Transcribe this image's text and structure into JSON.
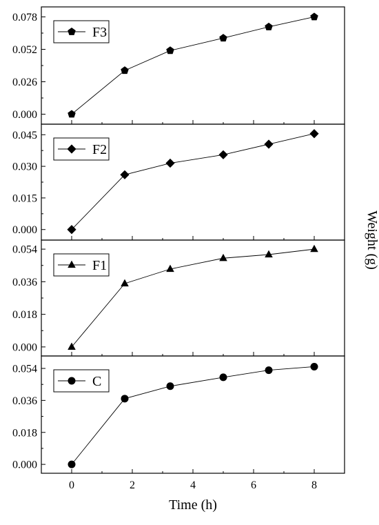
{
  "chart_data": {
    "type": "line",
    "layout": "stacked-panels-shared-x",
    "xlabel": "Time (h)",
    "ylabel": "Weight (g)",
    "xlim": [
      -1,
      9
    ],
    "xticks": [
      0,
      2,
      4,
      6,
      8
    ],
    "grid": false,
    "legend_position": "top-left",
    "panels": [
      {
        "series": [
          {
            "name": "F3",
            "marker": "pentagon",
            "x": [
              0,
              1.75,
              3.25,
              5.0,
              6.5,
              8.0
            ],
            "y": [
              0.0,
              0.035,
              0.051,
              0.061,
              0.07,
              0.078
            ]
          }
        ],
        "ylim": [
          -0.008,
          0.086
        ],
        "yticks": [
          "0.000",
          "0.026",
          "0.052",
          "0.078"
        ]
      },
      {
        "series": [
          {
            "name": "F2",
            "marker": "diamond",
            "x": [
              0,
              1.75,
              3.25,
              5.0,
              6.5,
              8.0
            ],
            "y": [
              0.0,
              0.026,
              0.0315,
              0.0355,
              0.0405,
              0.0455
            ]
          }
        ],
        "ylim": [
          -0.005,
          0.05
        ],
        "yticks": [
          "0.000",
          "0.015",
          "0.030",
          "0.045"
        ]
      },
      {
        "series": [
          {
            "name": "F1",
            "marker": "triangle",
            "x": [
              0,
              1.75,
              3.25,
              5.0,
              6.5,
              8.0
            ],
            "y": [
              0.0,
              0.035,
              0.043,
              0.049,
              0.051,
              0.054
            ]
          }
        ],
        "ylim": [
          -0.005,
          0.059
        ],
        "yticks": [
          "0.000",
          "0.018",
          "0.036",
          "0.054"
        ]
      },
      {
        "series": [
          {
            "name": "C",
            "marker": "circle",
            "x": [
              0,
              1.75,
              3.25,
              5.0,
              6.5,
              8.0
            ],
            "y": [
              0.0,
              0.037,
              0.044,
              0.049,
              0.053,
              0.055
            ]
          }
        ],
        "ylim": [
          -0.005,
          0.061
        ],
        "yticks": [
          "0.000",
          "0.018",
          "0.036",
          "0.054"
        ]
      }
    ]
  }
}
